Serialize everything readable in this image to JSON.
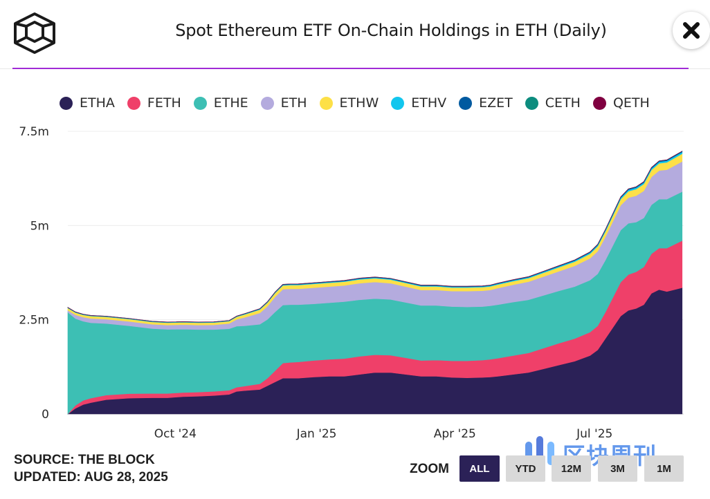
{
  "header": {
    "title": "Spot Ethereum ETF On-Chain Holdings in ETH (Daily)",
    "close_label": "close"
  },
  "colors": {
    "accent_line": "#a02ad6",
    "zoom_active_bg": "#2b2157",
    "zoom_inactive_bg": "#d9d9d9"
  },
  "footer": {
    "source": "SOURCE: THE BLOCK",
    "updated": "UPDATED: AUG 28, 2025",
    "zoom_label": "ZOOM",
    "zoom_buttons": [
      "ALL",
      "YTD",
      "12M",
      "3M",
      "1M"
    ],
    "zoom_active": "ALL"
  },
  "watermark": {
    "text": "区块周刊"
  },
  "chart_data": {
    "type": "area",
    "stacked": true,
    "title": "Spot Ethereum ETF On-Chain Holdings in ETH (Daily)",
    "xlabel": "",
    "ylabel": "",
    "x_unit": "days since 2024-07-23",
    "xlim": [
      0,
      401
    ],
    "ylim": [
      0,
      7500000
    ],
    "y_ticks": [
      0,
      2500000,
      5000000,
      7500000
    ],
    "y_tick_labels": [
      "0",
      "2.5m",
      "5m",
      "7.5m"
    ],
    "x_ticks": [
      70,
      162,
      252,
      343
    ],
    "x_tick_labels": [
      "Oct '24",
      "Jan '25",
      "Apr '25",
      "Jul '25"
    ],
    "grid": true,
    "legend_position": "top",
    "x": [
      0,
      5,
      10,
      15,
      25,
      40,
      55,
      65,
      75,
      85,
      95,
      105,
      110,
      115,
      125,
      130,
      135,
      140,
      145,
      150,
      160,
      170,
      180,
      190,
      200,
      210,
      220,
      230,
      240,
      250,
      260,
      270,
      275,
      280,
      290,
      300,
      310,
      320,
      330,
      340,
      345,
      350,
      355,
      360,
      365,
      370,
      375,
      380,
      385,
      390,
      395,
      400
    ],
    "series": [
      {
        "name": "ETHA",
        "color": "#2b2157",
        "values": [
          0,
          150000,
          250000,
          300000,
          380000,
          420000,
          430000,
          430000,
          460000,
          470000,
          490000,
          520000,
          600000,
          620000,
          650000,
          750000,
          850000,
          950000,
          950000,
          950000,
          980000,
          1000000,
          1000000,
          1050000,
          1100000,
          1100000,
          1050000,
          1000000,
          1000000,
          970000,
          960000,
          970000,
          980000,
          1000000,
          1050000,
          1100000,
          1200000,
          1300000,
          1400000,
          1550000,
          1700000,
          2000000,
          2300000,
          2600000,
          2750000,
          2800000,
          2900000,
          3200000,
          3300000,
          3250000,
          3300000,
          3350000
        ]
      },
      {
        "name": "FETH",
        "color": "#ef4069",
        "values": [
          0,
          80000,
          110000,
          120000,
          120000,
          120000,
          115000,
          115000,
          110000,
          110000,
          110000,
          110000,
          110000,
          120000,
          150000,
          200000,
          300000,
          400000,
          420000,
          430000,
          440000,
          450000,
          470000,
          480000,
          470000,
          460000,
          440000,
          420000,
          430000,
          440000,
          450000,
          460000,
          470000,
          480000,
          500000,
          520000,
          550000,
          580000,
          600000,
          620000,
          640000,
          700000,
          800000,
          900000,
          950000,
          970000,
          1000000,
          1050000,
          1100000,
          1150000,
          1200000,
          1250000
        ]
      },
      {
        "name": "ETHE",
        "color": "#3dbfb4",
        "values": [
          2700000,
          2300000,
          2100000,
          2000000,
          1900000,
          1800000,
          1720000,
          1700000,
          1680000,
          1660000,
          1640000,
          1630000,
          1620000,
          1600000,
          1580000,
          1560000,
          1560000,
          1540000,
          1530000,
          1520000,
          1500000,
          1500000,
          1510000,
          1500000,
          1490000,
          1480000,
          1470000,
          1460000,
          1450000,
          1440000,
          1430000,
          1420000,
          1420000,
          1420000,
          1420000,
          1410000,
          1400000,
          1390000,
          1380000,
          1380000,
          1380000,
          1380000,
          1380000,
          1380000,
          1360000,
          1320000,
          1300000,
          1300000,
          1300000,
          1300000,
          1300000,
          1300000
        ]
      },
      {
        "name": "ETH",
        "color": "#b4abde",
        "values": [
          50000,
          100000,
          110000,
          115000,
          115000,
          115000,
          115000,
          115000,
          120000,
          120000,
          125000,
          140000,
          180000,
          220000,
          300000,
          350000,
          400000,
          420000,
          420000,
          420000,
          430000,
          430000,
          430000,
          440000,
          440000,
          430000,
          420000,
          410000,
          410000,
          410000,
          420000,
          420000,
          420000,
          440000,
          460000,
          480000,
          500000,
          520000,
          550000,
          580000,
          600000,
          620000,
          640000,
          660000,
          680000,
          700000,
          720000,
          740000,
          760000,
          780000,
          790000,
          800000
        ]
      },
      {
        "name": "ETHW",
        "color": "#fde047",
        "values": [
          60000,
          60000,
          60000,
          62000,
          62000,
          62000,
          62000,
          62000,
          62000,
          62000,
          62000,
          62000,
          70000,
          80000,
          90000,
          95000,
          100000,
          100000,
          100000,
          100000,
          100000,
          100000,
          100000,
          100000,
          100000,
          95000,
          95000,
          95000,
          95000,
          95000,
          95000,
          95000,
          95000,
          95000,
          95000,
          95000,
          100000,
          105000,
          110000,
          120000,
          130000,
          140000,
          150000,
          160000,
          170000,
          175000,
          180000,
          185000,
          190000,
          195000,
          200000,
          205000
        ]
      },
      {
        "name": "ETHV",
        "color": "#12c6ee",
        "values": [
          10000,
          10000,
          10000,
          10000,
          10000,
          10000,
          10000,
          10000,
          10000,
          10000,
          10000,
          10000,
          10000,
          12000,
          14000,
          15000,
          16000,
          17000,
          17000,
          18000,
          18000,
          19000,
          19000,
          20000,
          20000,
          20000,
          20000,
          20000,
          20000,
          20000,
          20000,
          20000,
          21000,
          22000,
          23000,
          24000,
          25000,
          27000,
          29000,
          31000,
          33000,
          35000,
          37000,
          39000,
          40000,
          40000,
          41000,
          42000,
          43000,
          44000,
          45000,
          45000
        ]
      },
      {
        "name": "EZET",
        "color": "#005aa0",
        "values": [
          5000,
          5000,
          5000,
          5000,
          5000,
          5000,
          5000,
          5000,
          5000,
          5000,
          5000,
          5000,
          5000,
          6000,
          7000,
          8000,
          9000,
          10000,
          10000,
          10000,
          10000,
          10000,
          10000,
          11000,
          11000,
          11000,
          11000,
          11000,
          11000,
          11000,
          11000,
          11000,
          11000,
          12000,
          12000,
          12000,
          13000,
          14000,
          15000,
          16000,
          17000,
          18000,
          19000,
          20000,
          20000,
          20000,
          20000,
          20000,
          20000,
          20000,
          20000,
          20000
        ]
      },
      {
        "name": "CETH",
        "color": "#0c8c7e",
        "values": [
          3000,
          3000,
          3000,
          3000,
          3000,
          3000,
          3000,
          3000,
          3000,
          3000,
          3000,
          3000,
          3000,
          3000,
          3000,
          3000,
          3000,
          3000,
          3000,
          3000,
          3000,
          3000,
          3000,
          3000,
          3000,
          3000,
          3000,
          3000,
          3000,
          3000,
          3000,
          3000,
          3000,
          3000,
          3000,
          3000,
          3000,
          3000,
          3000,
          3000,
          3000,
          3000,
          3000,
          3000,
          3000,
          3000,
          3000,
          3000,
          3000,
          3000,
          3000,
          3000
        ]
      },
      {
        "name": "QETH",
        "color": "#800040",
        "values": [
          2000,
          2000,
          2000,
          2000,
          2000,
          2000,
          2000,
          2000,
          2000,
          2000,
          2000,
          2000,
          2000,
          2000,
          2000,
          2000,
          2000,
          2000,
          2000,
          2000,
          2000,
          2000,
          2000,
          2000,
          2000,
          2000,
          2000,
          2000,
          2000,
          2000,
          2000,
          2000,
          2000,
          2000,
          2000,
          2000,
          2000,
          2000,
          2000,
          2000,
          2000,
          2000,
          2000,
          2000,
          2000,
          2000,
          2000,
          2000,
          2000,
          2000,
          2000,
          2000
        ]
      }
    ]
  }
}
